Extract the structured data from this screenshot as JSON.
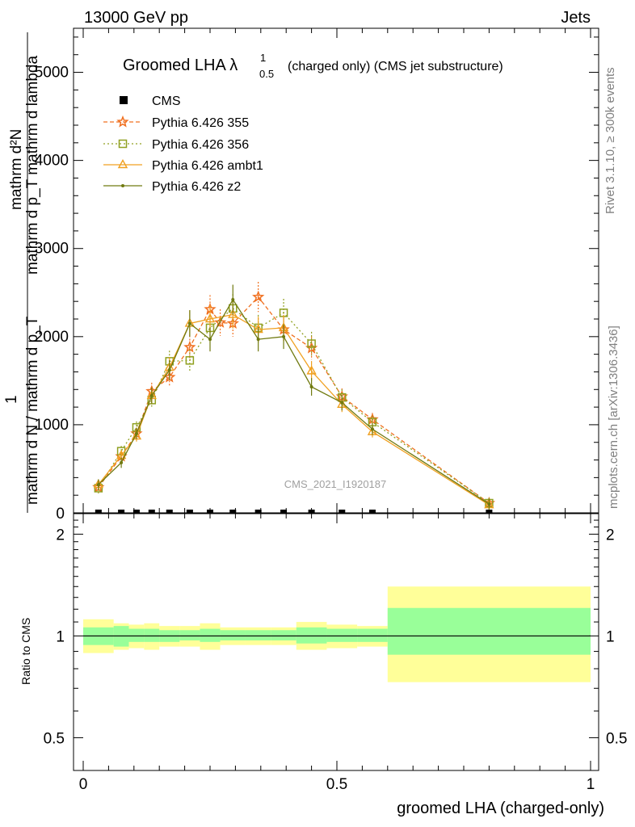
{
  "header": {
    "left": "13000 GeV pp",
    "right": "Jets",
    "side_right_top": "Rivet 3.1.10, ≥ 300k events",
    "side_right_bottom": "mcplots.cern.ch [arXiv:1306.3436]"
  },
  "chart_data": [
    {
      "type": "line",
      "panel": "main",
      "title_main": "Groomed LHA λ",
      "title_sup": "1",
      "title_sub": "0.5",
      "title_rest": "(charged only) (CMS jet substructure)",
      "watermark": "CMS_2021_I1920187",
      "ylabel": {
        "numerator": "mathrm d²N",
        "denominator_top": "mathrm d p_T mathrm d lambda",
        "fraction_num": "1",
        "denominator": "mathrm d N / mathrm d p_T"
      },
      "ylim": [
        0,
        5500
      ],
      "yticks": [
        0,
        1000,
        2000,
        3000,
        4000,
        5000
      ],
      "ytick_labels": [
        "0",
        "1000",
        "2000",
        "3000",
        "4000",
        "5000"
      ],
      "xlim": [
        -0.02,
        1.02
      ],
      "legend": [
        "CMS",
        "Pythia 6.426 355",
        "Pythia 6.426 356",
        "Pythia 6.426 ambt1",
        "Pythia 6.426 z2"
      ],
      "legend_position": "top-left",
      "cms": {
        "name": "CMS",
        "x": [
          0.03,
          0.075,
          0.105,
          0.135,
          0.17,
          0.21,
          0.25,
          0.295,
          0.345,
          0.395,
          0.45,
          0.51,
          0.57,
          0.8
        ],
        "values": [
          0,
          0,
          0,
          0,
          0,
          0,
          0,
          0,
          0,
          0,
          0,
          0,
          0,
          0
        ]
      },
      "series": [
        {
          "name": "Pythia 6.426 355",
          "color": "#f07020",
          "marker": "star",
          "dash": "5,3",
          "x": [
            0.03,
            0.075,
            0.105,
            0.135,
            0.17,
            0.21,
            0.25,
            0.27,
            0.295,
            0.345,
            0.395,
            0.45,
            0.51,
            0.57,
            0.8
          ],
          "values": [
            290,
            640,
            900,
            1380,
            1540,
            1880,
            2310,
            2160,
            2150,
            2450,
            2080,
            1870,
            1320,
            1060,
            110
          ]
        },
        {
          "name": "Pythia 6.426 356",
          "color": "#90a020",
          "marker": "square",
          "dash": "2,3",
          "x": [
            0.03,
            0.075,
            0.105,
            0.135,
            0.17,
            0.21,
            0.25,
            0.295,
            0.345,
            0.395,
            0.45,
            0.51,
            0.57,
            0.8
          ],
          "values": [
            280,
            700,
            970,
            1280,
            1720,
            1730,
            2100,
            2320,
            2100,
            2270,
            1920,
            1310,
            1030,
            110
          ]
        },
        {
          "name": "Pythia 6.426 ambt1",
          "color": "#f0a020",
          "marker": "triangle",
          "dash": "",
          "x": [
            0.03,
            0.075,
            0.105,
            0.135,
            0.17,
            0.21,
            0.25,
            0.295,
            0.345,
            0.395,
            0.45,
            0.51,
            0.57,
            0.8
          ],
          "values": [
            320,
            650,
            870,
            1330,
            1650,
            2150,
            2200,
            2250,
            2080,
            2100,
            1610,
            1230,
            920,
            90
          ]
        },
        {
          "name": "Pythia 6.426 z2",
          "color": "#707a10",
          "marker": "dot",
          "dash": "",
          "x": [
            0.03,
            0.075,
            0.105,
            0.135,
            0.17,
            0.21,
            0.25,
            0.295,
            0.345,
            0.395,
            0.45,
            0.51,
            0.57,
            0.8
          ],
          "values": [
            320,
            570,
            900,
            1330,
            1620,
            2150,
            1970,
            2420,
            1970,
            2000,
            1430,
            1250,
            950,
            100
          ]
        }
      ]
    },
    {
      "type": "area",
      "panel": "ratio",
      "ylabel": "Ratio to CMS",
      "xlabel": "groomed LHA (charged-only)",
      "ylim": [
        0.4,
        2.3
      ],
      "yticks": [
        0.5,
        1,
        2
      ],
      "ytick_labels": [
        "0.5",
        "1",
        "2"
      ],
      "xticks": [
        0,
        0.5,
        1
      ],
      "xtick_labels": [
        "0",
        "0.5",
        "1"
      ],
      "reference_line": 1,
      "bands": {
        "edges": [
          0,
          0.06,
          0.09,
          0.12,
          0.15,
          0.19,
          0.23,
          0.27,
          0.32,
          0.37,
          0.42,
          0.48,
          0.54,
          0.6,
          1.0
        ],
        "stat_lo": [
          0.94,
          0.93,
          0.96,
          0.96,
          0.96,
          0.97,
          0.96,
          0.97,
          0.97,
          0.97,
          0.95,
          0.96,
          0.96,
          0.88
        ],
        "stat_hi": [
          1.06,
          1.07,
          1.05,
          1.05,
          1.04,
          1.04,
          1.05,
          1.04,
          1.04,
          1.04,
          1.06,
          1.05,
          1.05,
          1.21
        ],
        "tot_lo": [
          0.89,
          0.91,
          0.92,
          0.91,
          0.93,
          0.93,
          0.91,
          0.94,
          0.94,
          0.94,
          0.91,
          0.92,
          0.93,
          0.73
        ],
        "tot_hi": [
          1.12,
          1.09,
          1.08,
          1.09,
          1.07,
          1.07,
          1.09,
          1.06,
          1.06,
          1.06,
          1.1,
          1.08,
          1.07,
          1.4
        ]
      }
    }
  ]
}
